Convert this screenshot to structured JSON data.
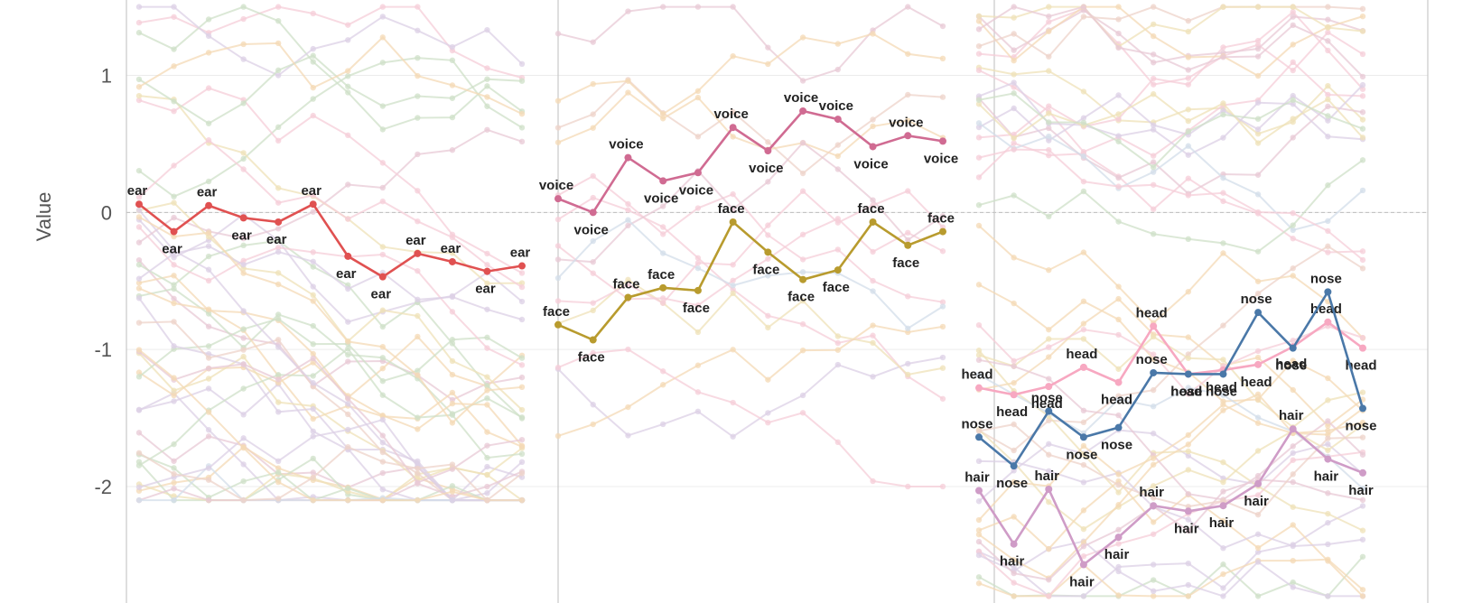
{
  "chart_data": {
    "type": "line",
    "title": "",
    "xlabel": "",
    "ylabel": "Value",
    "ylim": [
      -2.85,
      1.55
    ],
    "yticks": [
      1,
      0,
      -1,
      -2
    ],
    "ytick_labels": [
      "1",
      "0",
      "-1",
      "-2"
    ],
    "zero_line": "dashed",
    "grid": true,
    "panels": [
      {
        "series": [
          {
            "name": "ear",
            "color": "#e05151",
            "values": [
              0.06,
              -0.14,
              0.05,
              -0.04,
              -0.07,
              0.06,
              -0.32,
              -0.47,
              -0.3,
              -0.36,
              -0.43,
              -0.39
            ]
          }
        ]
      },
      {
        "series": [
          {
            "name": "voice",
            "color": "#d06b92",
            "values": [
              0.1,
              0.0,
              0.4,
              0.23,
              0.29,
              0.62,
              0.45,
              0.74,
              0.68,
              0.48,
              0.56,
              0.52
            ]
          },
          {
            "name": "face",
            "color": "#b89b2e",
            "values": [
              -0.82,
              -0.93,
              -0.62,
              -0.55,
              -0.57,
              -0.07,
              -0.29,
              -0.49,
              -0.42,
              -0.07,
              -0.24,
              -0.14
            ]
          }
        ]
      },
      {
        "series": [
          {
            "name": "head",
            "color": "#f7a8c1",
            "values": [
              -1.28,
              -1.33,
              -1.27,
              -1.13,
              -1.24,
              -0.83,
              -1.18,
              -1.15,
              -1.11,
              -0.98,
              -0.8,
              -0.99
            ]
          },
          {
            "name": "nose",
            "color": "#4a78a8",
            "values": [
              -1.64,
              -1.85,
              -1.45,
              -1.64,
              -1.57,
              -1.17,
              -1.18,
              -1.18,
              -0.73,
              -0.99,
              -0.58,
              -1.43
            ]
          },
          {
            "name": "hair",
            "color": "#cf9cc7",
            "values": [
              -2.03,
              -2.42,
              -2.02,
              -2.57,
              -2.37,
              -2.14,
              -2.18,
              -2.14,
              -1.98,
              -1.58,
              -1.8,
              -1.9
            ]
          }
        ]
      }
    ]
  }
}
